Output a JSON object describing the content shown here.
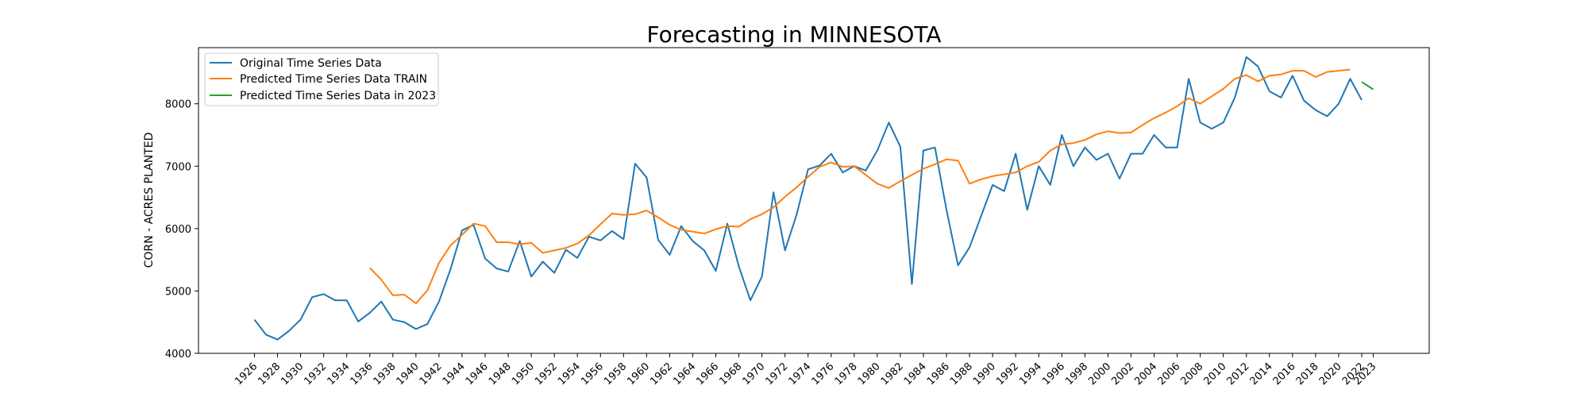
{
  "chart_data": {
    "type": "line",
    "title": "Forecasting in MINNESOTA",
    "xlabel": "",
    "ylabel": "CORN - ACRES PLANTED",
    "xlim": [
      1921.15,
      2027.85
    ],
    "ylim": [
      4000,
      8900
    ],
    "yticks": [
      4000,
      5000,
      6000,
      7000,
      8000
    ],
    "xticks": [
      1926,
      1928,
      1930,
      1932,
      1934,
      1936,
      1938,
      1940,
      1942,
      1944,
      1946,
      1948,
      1950,
      1952,
      1954,
      1956,
      1958,
      1960,
      1962,
      1964,
      1966,
      1968,
      1970,
      1972,
      1974,
      1976,
      1978,
      1980,
      1982,
      1984,
      1986,
      1988,
      1990,
      1992,
      1994,
      1996,
      1998,
      2000,
      2002,
      2004,
      2006,
      2008,
      2010,
      2012,
      2014,
      2016,
      2018,
      2020,
      2022,
      2023
    ],
    "grid": false,
    "legend_position": "upper left",
    "series": [
      {
        "name": "Original Time Series Data",
        "color": "#1f77b4",
        "x": [
          1926,
          1927,
          1928,
          1929,
          1930,
          1931,
          1932,
          1933,
          1934,
          1935,
          1936,
          1937,
          1938,
          1939,
          1940,
          1941,
          1942,
          1943,
          1944,
          1945,
          1946,
          1947,
          1948,
          1949,
          1950,
          1951,
          1952,
          1953,
          1954,
          1955,
          1956,
          1957,
          1958,
          1959,
          1960,
          1961,
          1962,
          1963,
          1964,
          1965,
          1966,
          1967,
          1968,
          1969,
          1970,
          1971,
          1972,
          1973,
          1974,
          1975,
          1976,
          1977,
          1978,
          1979,
          1980,
          1981,
          1982,
          1983,
          1984,
          1985,
          1986,
          1987,
          1988,
          1989,
          1990,
          1991,
          1992,
          1993,
          1994,
          1995,
          1996,
          1997,
          1998,
          1999,
          2000,
          2001,
          2002,
          2003,
          2004,
          2005,
          2006,
          2007,
          2008,
          2009,
          2010,
          2011,
          2012,
          2013,
          2014,
          2015,
          2016,
          2017,
          2018,
          2019,
          2020,
          2021,
          2022
        ],
        "values": [
          4540,
          4300,
          4220,
          4360,
          4540,
          4900,
          4950,
          4850,
          4850,
          4510,
          4650,
          4830,
          4540,
          4500,
          4390,
          4470,
          4830,
          5350,
          5970,
          6060,
          5520,
          5360,
          5310,
          5800,
          5230,
          5470,
          5290,
          5660,
          5530,
          5870,
          5810,
          5960,
          5830,
          7040,
          6820,
          5820,
          5580,
          6040,
          5800,
          5650,
          5320,
          6080,
          5390,
          4850,
          5230,
          6580,
          5650,
          6220,
          6950,
          7010,
          7200,
          6900,
          7000,
          6930,
          7250,
          7700,
          7310,
          5110,
          7250,
          7300,
          6300,
          5410,
          5700,
          6200,
          6700,
          6600,
          7200,
          6300,
          7000,
          6700,
          7500,
          7000,
          7300,
          7100,
          7200,
          6800,
          7200,
          7200,
          7500,
          7300,
          7300,
          8400,
          7700,
          7600,
          7700,
          8100,
          8750,
          8600,
          8200,
          8100,
          8450,
          8050,
          7900,
          7800,
          8000,
          8400,
          8060
        ]
      },
      {
        "name": "Predicted Time Series Data TRAIN",
        "color": "#ff7f0e",
        "x": [
          1936,
          1937,
          1938,
          1939,
          1940,
          1941,
          1942,
          1943,
          1944,
          1945,
          1946,
          1947,
          1948,
          1949,
          1950,
          1951,
          1952,
          1953,
          1954,
          1955,
          1956,
          1957,
          1958,
          1959,
          1960,
          1961,
          1962,
          1963,
          1964,
          1965,
          1966,
          1967,
          1968,
          1969,
          1970,
          1971,
          1972,
          1973,
          1974,
          1975,
          1976,
          1977,
          1978,
          1979,
          1980,
          1981,
          1982,
          1983,
          1984,
          1985,
          1986,
          1987,
          1988,
          1989,
          1990,
          1991,
          1992,
          1993,
          1994,
          1995,
          1996,
          1997,
          1998,
          1999,
          2000,
          2001,
          2002,
          2003,
          2004,
          2005,
          2006,
          2007,
          2008,
          2009,
          2010,
          2011,
          2012,
          2013,
          2014,
          2015,
          2016,
          2017,
          2018,
          2019,
          2020,
          2021
        ],
        "values": [
          5370,
          5180,
          4930,
          4940,
          4800,
          5010,
          5450,
          5730,
          5900,
          6080,
          6040,
          5780,
          5780,
          5750,
          5770,
          5610,
          5650,
          5690,
          5760,
          5890,
          6070,
          6240,
          6220,
          6230,
          6290,
          6180,
          6060,
          5980,
          5950,
          5920,
          5990,
          6040,
          6030,
          6150,
          6230,
          6340,
          6510,
          6660,
          6830,
          6990,
          7060,
          6990,
          7000,
          6860,
          6720,
          6650,
          6760,
          6860,
          6960,
          7030,
          7110,
          7090,
          6720,
          6790,
          6840,
          6870,
          6900,
          7000,
          7070,
          7250,
          7350,
          7370,
          7420,
          7510,
          7560,
          7530,
          7540,
          7660,
          7770,
          7860,
          7960,
          8090,
          8000,
          8120,
          8240,
          8400,
          8460,
          8360,
          8450,
          8470,
          8530,
          8530,
          8430,
          8510,
          8530,
          8550
        ]
      },
      {
        "name": "Predicted Time Series Data in 2023",
        "color": "#2ca02c",
        "x": [
          2022,
          2023
        ],
        "values": [
          8350,
          8230
        ]
      }
    ]
  }
}
